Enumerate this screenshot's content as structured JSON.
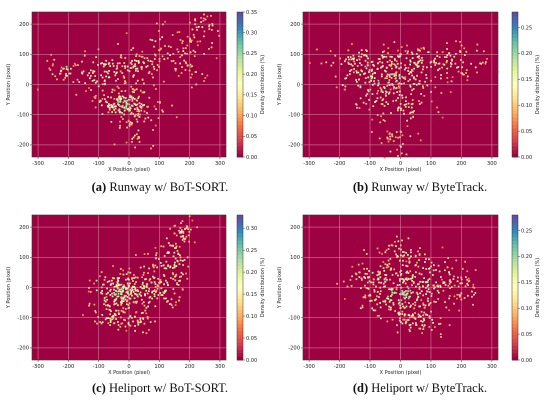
{
  "chart_data": [
    {
      "type": "heatmap",
      "label": "(a)",
      "caption": "Runway w/ BoT-SORT.",
      "xlabel": "X Position (pixel)",
      "ylabel": "Y Position (pixel)",
      "colorbar_label": "Density distribution (%)",
      "xlim": [
        -320,
        320
      ],
      "ylim": [
        -240,
        240
      ],
      "x_ticks": [
        -300,
        -200,
        -100,
        0,
        100,
        200,
        300
      ],
      "y_ticks": [
        -200,
        -100,
        0,
        100,
        200
      ],
      "colorbar_range": [
        0,
        0.35
      ],
      "colorbar_ticks": [
        "0.00",
        "0.05",
        "0.10",
        "0.15",
        "0.20",
        "0.25",
        "0.30",
        "0.35"
      ],
      "grid": true,
      "colormap": "Spectral",
      "background_color": "#9e0142",
      "hotspots": [
        {
          "x": -20,
          "y": -60,
          "spread_x": 45,
          "spread_y": 25,
          "weight": 0.3
        },
        {
          "x": -100,
          "y": 40,
          "spread_x": 60,
          "spread_y": 35,
          "weight": 0.18
        },
        {
          "x": 20,
          "y": 60,
          "spread_x": 40,
          "spread_y": 30,
          "weight": 0.12
        },
        {
          "x": 120,
          "y": 120,
          "spread_x": 70,
          "spread_y": 40,
          "weight": 0.1
        },
        {
          "x": 230,
          "y": 180,
          "spread_x": 40,
          "spread_y": 30,
          "weight": 0.08
        },
        {
          "x": 10,
          "y": -150,
          "spread_x": 25,
          "spread_y": 35,
          "weight": 0.07
        },
        {
          "x": 180,
          "y": 60,
          "spread_x": 40,
          "spread_y": 30,
          "weight": 0.07
        },
        {
          "x": -220,
          "y": 50,
          "spread_x": 30,
          "spread_y": 20,
          "weight": 0.05
        },
        {
          "x": 80,
          "y": -90,
          "spread_x": 35,
          "spread_y": 25,
          "weight": 0.03
        }
      ]
    },
    {
      "type": "heatmap",
      "label": "(b)",
      "caption": "Runway w/ ByteTrack.",
      "xlabel": "X Position (pixel)",
      "ylabel": "Y Position (pixel)",
      "colorbar_label": "Density distribution (%)",
      "xlim": [
        -320,
        320
      ],
      "ylim": [
        -240,
        240
      ],
      "x_ticks": [
        -300,
        -200,
        -100,
        0,
        100,
        200,
        300
      ],
      "y_ticks": [
        -200,
        -100,
        0,
        100,
        200
      ],
      "colorbar_range": [
        0,
        0.28
      ],
      "colorbar_ticks": [
        "0.00",
        "0.05",
        "0.10",
        "0.15",
        "0.20",
        "0.25"
      ],
      "grid": true,
      "colormap": "Spectral",
      "background_color": "#9e0142",
      "hotspots": [
        {
          "x": -40,
          "y": 20,
          "spread_x": 80,
          "spread_y": 50,
          "weight": 0.34
        },
        {
          "x": -120,
          "y": 60,
          "spread_x": 60,
          "spread_y": 35,
          "weight": 0.2
        },
        {
          "x": 60,
          "y": 60,
          "spread_x": 60,
          "spread_y": 40,
          "weight": 0.16
        },
        {
          "x": 180,
          "y": 80,
          "spread_x": 60,
          "spread_y": 35,
          "weight": 0.12
        },
        {
          "x": -20,
          "y": -180,
          "spread_x": 25,
          "spread_y": 30,
          "weight": 0.06
        },
        {
          "x": 0,
          "y": -60,
          "spread_x": 50,
          "spread_y": 40,
          "weight": 0.12
        }
      ]
    },
    {
      "type": "heatmap",
      "label": "(c)",
      "caption": "Heliport w/ BoT-SORT.",
      "xlabel": "X Position (pixel)",
      "ylabel": "Y Position (pixel)",
      "colorbar_label": "Density distribution (%)",
      "xlim": [
        -320,
        320
      ],
      "ylim": [
        -240,
        240
      ],
      "x_ticks": [
        -300,
        -200,
        -100,
        0,
        100,
        200,
        300
      ],
      "y_ticks": [
        -200,
        -100,
        0,
        100,
        200
      ],
      "colorbar_range": [
        0,
        0.33
      ],
      "colorbar_ticks": [
        "0.00",
        "0.05",
        "0.10",
        "0.15",
        "0.20",
        "0.25",
        "0.30"
      ],
      "grid": true,
      "colormap": "Spectral",
      "background_color": "#9e0142",
      "hotspots": [
        {
          "x": -30,
          "y": -10,
          "spread_x": 45,
          "spread_y": 30,
          "weight": 0.4
        },
        {
          "x": 80,
          "y": 0,
          "spread_x": 45,
          "spread_y": 35,
          "weight": 0.18
        },
        {
          "x": 140,
          "y": 90,
          "spread_x": 35,
          "spread_y": 45,
          "weight": 0.16
        },
        {
          "x": 180,
          "y": 180,
          "spread_x": 20,
          "spread_y": 25,
          "weight": 0.08
        },
        {
          "x": -60,
          "y": -90,
          "spread_x": 35,
          "spread_y": 25,
          "weight": 0.1
        },
        {
          "x": 20,
          "y": -110,
          "spread_x": 30,
          "spread_y": 20,
          "weight": 0.08
        }
      ]
    },
    {
      "type": "heatmap",
      "label": "(d)",
      "caption": "Heliport w/ ByteTrack.",
      "xlabel": "X Position (pixel)",
      "ylabel": "Y Position (pixel)",
      "colorbar_label": "Density distribution (%)",
      "xlim": [
        -320,
        320
      ],
      "ylim": [
        -240,
        240
      ],
      "x_ticks": [
        -300,
        -200,
        -100,
        0,
        100,
        200,
        300
      ],
      "y_ticks": [
        -200,
        -100,
        0,
        100,
        200
      ],
      "colorbar_range": [
        0,
        0.28
      ],
      "colorbar_ticks": [
        "0.00",
        "0.05",
        "0.10",
        "0.15",
        "0.20",
        "0.25"
      ],
      "grid": true,
      "colormap": "Spectral",
      "background_color": "#9e0142",
      "hotspots": [
        {
          "x": 0,
          "y": -20,
          "spread_x": 70,
          "spread_y": 40,
          "weight": 0.38
        },
        {
          "x": -80,
          "y": 40,
          "spread_x": 50,
          "spread_y": 35,
          "weight": 0.14
        },
        {
          "x": 100,
          "y": 40,
          "spread_x": 55,
          "spread_y": 40,
          "weight": 0.16
        },
        {
          "x": 0,
          "y": 110,
          "spread_x": 35,
          "spread_y": 30,
          "weight": 0.1
        },
        {
          "x": 40,
          "y": -100,
          "spread_x": 50,
          "spread_y": 25,
          "weight": 0.14
        },
        {
          "x": 200,
          "y": 0,
          "spread_x": 30,
          "spread_y": 25,
          "weight": 0.08
        }
      ]
    }
  ]
}
